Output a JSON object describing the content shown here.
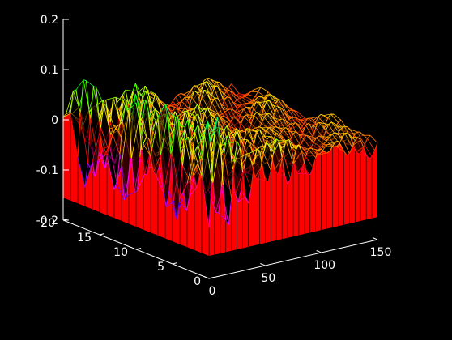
{
  "window": {
    "background": "#000000",
    "axis_color": "#ffffff"
  },
  "chart_data": {
    "type": "waterfall-3d",
    "title": "",
    "xlabel": "",
    "ylabel": "",
    "zlabel": "",
    "xlim": [
      0,
      150
    ],
    "ylim": [
      0,
      20
    ],
    "zlim": [
      -0.2,
      0.2
    ],
    "x_ticks": [
      0,
      50,
      100,
      150
    ],
    "x_tick_labels": [
      "0",
      "50",
      "100",
      "150"
    ],
    "y_ticks": [
      0,
      5,
      10,
      15,
      20
    ],
    "y_tick_labels": [
      "0",
      "5",
      "10",
      "15",
      "20"
    ],
    "z_ticks": [
      -0.2,
      -0.1,
      0,
      0.1,
      0.2
    ],
    "z_tick_labels": [
      "-0.2",
      "-0.1",
      "0",
      "0.1",
      "0.2"
    ],
    "grid": false,
    "curtain_color": "#ff0000",
    "colormap": [
      "#0000ff",
      "#ff00ff",
      "#ff0000",
      "#ffff00",
      "#00ff00",
      "#00ffff"
    ],
    "surface": {
      "x_range": [
        0,
        150
      ],
      "y_range": [
        0,
        20
      ],
      "description_terms": [
        {
          "component": "decaying-oscillation",
          "amplitude_at_x0": 0.12,
          "period_x": 18,
          "decay_length_x": 55
        },
        {
          "component": "ripple",
          "amplitude": 0.025,
          "period_y": 5
        }
      ]
    }
  }
}
